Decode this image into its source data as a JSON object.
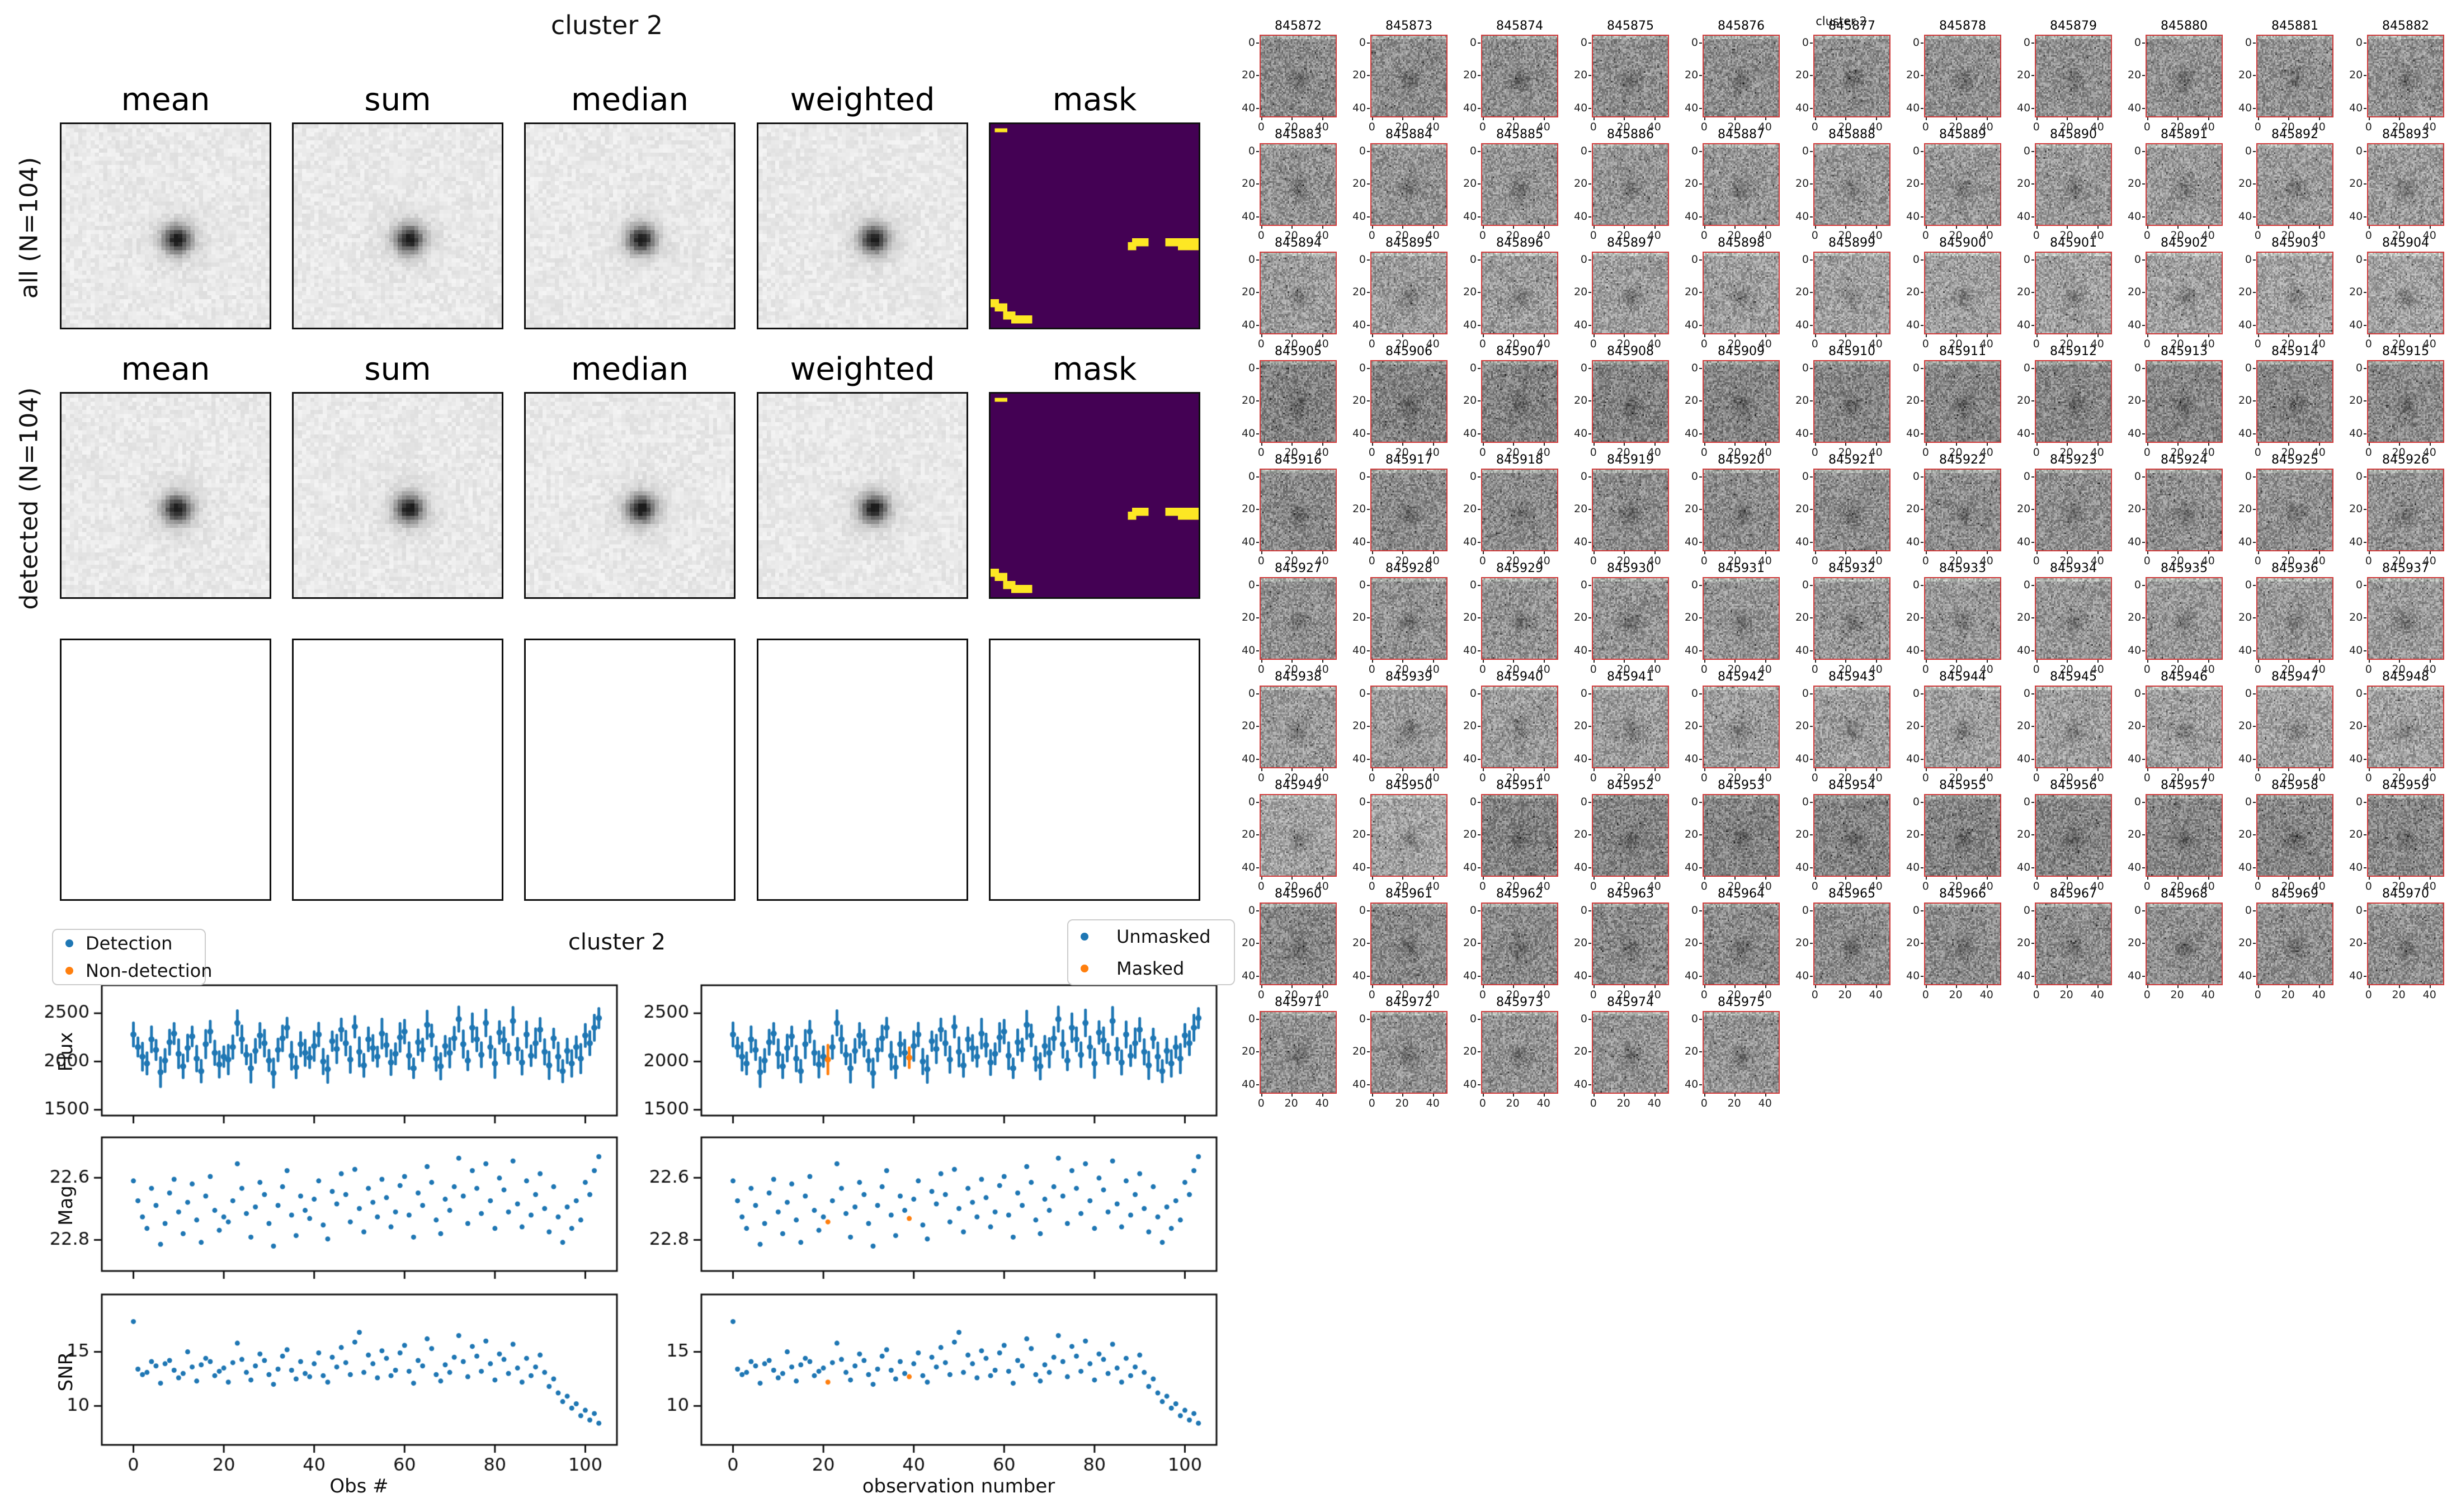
{
  "stack_figure": {
    "title": "cluster 2",
    "column_headers": [
      "mean",
      "sum",
      "median",
      "weighted",
      "mask"
    ],
    "row_labels": [
      "all (N=104)",
      "detected (N=104)"
    ],
    "mask_colors": {
      "background": "#440154",
      "masked": "#fde724"
    },
    "mask_rects_grid50": [
      [
        1,
        1,
        3,
        1
      ],
      [
        34,
        28,
        4,
        2
      ],
      [
        33,
        29,
        2,
        2
      ],
      [
        42,
        28,
        8,
        2
      ],
      [
        45,
        30,
        5,
        1
      ],
      [
        0,
        43,
        2,
        2
      ],
      [
        1,
        44,
        3,
        2
      ],
      [
        3,
        46,
        3,
        2
      ],
      [
        5,
        47,
        5,
        2
      ]
    ]
  },
  "plots_figure": {
    "title": "cluster 2",
    "legend_left": {
      "items": [
        {
          "label": "Detection",
          "color": "#1f77b4"
        },
        {
          "label": "Non-detection",
          "color": "#ff7f0e"
        }
      ]
    },
    "legend_right": {
      "items": [
        {
          "label": "Unmasked",
          "color": "#1f77b4"
        },
        {
          "label": "Masked",
          "color": "#ff7f0e"
        }
      ]
    },
    "ylabels": [
      "Flux",
      "Mag",
      "SNR"
    ],
    "xlabel_left": "Obs #",
    "xlabel_right": "observation number",
    "point_color": "#1f77b4",
    "masked_color": "#ff7f0e"
  },
  "chart_data": {
    "type": "scatter",
    "title": "cluster 2",
    "n_obs": 104,
    "x_is_observation_index_starting_at": 0,
    "xlim": [
      -7,
      107
    ],
    "xticks": [
      0,
      20,
      40,
      60,
      80,
      100
    ],
    "masked_obs": [
      21,
      39
    ],
    "series": [
      {
        "name": "Flux",
        "style": "errorbar",
        "ylim": [
          1440,
          2790
        ],
        "yticks": [
          1500,
          2000,
          2500
        ],
        "values": [
          2280,
          2150,
          2050,
          1980,
          2230,
          2120,
          1890,
          2010,
          2200,
          2290,
          2080,
          1950,
          2140,
          2260,
          2030,
          1900,
          2180,
          2310,
          2090,
          1970,
          2050,
          2020,
          2150,
          2400,
          2230,
          2070,
          1930,
          2110,
          2270,
          2190,
          2010,
          1880,
          2120,
          2240,
          2350,
          2060,
          1940,
          2180,
          2090,
          2040,
          2160,
          2280,
          2000,
          1920,
          2210,
          2130,
          2330,
          2190,
          2020,
          2360,
          2100,
          1960,
          2230,
          2140,
          2050,
          2290,
          2170,
          1990,
          2080,
          2250,
          2310,
          2060,
          1930,
          2200,
          2120,
          2380,
          2270,
          2030,
          1950,
          2160,
          2090,
          2240,
          2440,
          2180,
          2010,
          2350,
          2230,
          2070,
          2400,
          2150,
          1980,
          2300,
          2220,
          2080,
          2420,
          2130,
          1990,
          2280,
          2060,
          2190,
          2330,
          2100,
          1960,
          2240,
          2050,
          1900,
          2110,
          1980,
          2150,
          2030,
          2270,
          2190,
          2350,
          2450
        ],
        "errors": [
          120,
          95,
          140,
          110,
          130,
          100,
          150,
          115,
          125,
          105,
          145,
          118,
          135,
          98,
          128,
          112,
          142,
          108,
          122,
          132,
          102,
          148,
          116,
          126,
          138,
          96,
          144,
          119,
          124,
          134,
          106,
          146,
          113,
          129,
          99,
          141,
          109,
          121,
          131,
          103,
          149,
          117,
          127,
          137,
          97,
          143,
          111,
          123,
          133,
          107,
          147,
          114,
          120,
          130,
          100,
          150,
          115,
          125,
          105,
          145,
          118,
          135,
          98,
          128,
          112,
          142,
          108,
          122,
          132,
          102,
          148,
          116,
          126,
          138,
          96,
          144,
          119,
          124,
          134,
          106,
          146,
          113,
          129,
          99,
          141,
          109,
          121,
          131,
          103,
          149,
          117,
          127,
          137,
          97,
          143,
          111,
          123,
          133,
          107,
          147,
          114,
          120,
          130,
          100
        ]
      },
      {
        "name": "Mag",
        "style": "scatter",
        "inverted": true,
        "ylim": [
          22.47,
          22.9
        ],
        "yticks": [
          22.6,
          22.8
        ],
        "values": [
          22.61,
          22.674,
          22.726,
          22.763,
          22.634,
          22.689,
          22.814,
          22.747,
          22.649,
          22.605,
          22.71,
          22.78,
          22.679,
          22.62,
          22.736,
          22.808,
          22.659,
          22.596,
          22.705,
          22.769,
          22.726,
          22.742,
          22.674,
          22.555,
          22.634,
          22.715,
          22.791,
          22.694,
          22.615,
          22.654,
          22.747,
          22.82,
          22.689,
          22.629,
          22.577,
          22.72,
          22.786,
          22.659,
          22.705,
          22.731,
          22.669,
          22.61,
          22.752,
          22.797,
          22.644,
          22.684,
          22.587,
          22.654,
          22.742,
          22.573,
          22.699,
          22.774,
          22.634,
          22.679,
          22.726,
          22.605,
          22.664,
          22.758,
          22.71,
          22.625,
          22.596,
          22.72,
          22.791,
          22.649,
          22.689,
          22.564,
          22.615,
          22.736,
          22.78,
          22.669,
          22.705,
          22.629,
          22.537,
          22.659,
          22.747,
          22.577,
          22.634,
          22.715,
          22.555,
          22.674,
          22.763,
          22.601,
          22.639,
          22.71,
          22.546,
          22.684,
          22.758,
          22.61,
          22.72,
          22.654,
          22.587,
          22.699,
          22.774,
          22.629,
          22.726,
          22.808,
          22.694,
          22.763,
          22.674,
          22.736,
          22.615,
          22.654,
          22.577,
          22.532
        ]
      },
      {
        "name": "SNR",
        "style": "scatter",
        "ylim": [
          6.4,
          20.3
        ],
        "yticks": [
          10,
          15
        ],
        "values": [
          17.8,
          13.4,
          12.9,
          13.1,
          14.1,
          13.7,
          12.1,
          13.9,
          14.2,
          13.3,
          12.6,
          13.0,
          15.0,
          13.6,
          12.3,
          13.8,
          14.4,
          14.1,
          12.8,
          13.2,
          13.5,
          12.2,
          14.0,
          15.8,
          14.3,
          13.1,
          12.4,
          13.7,
          14.8,
          14.2,
          12.9,
          12.0,
          13.4,
          14.6,
          15.2,
          13.3,
          12.5,
          14.1,
          13.0,
          12.7,
          13.9,
          14.9,
          12.8,
          12.2,
          14.5,
          13.6,
          15.4,
          14.0,
          12.9,
          15.9,
          16.8,
          13.1,
          14.7,
          13.9,
          12.6,
          15.1,
          14.4,
          12.8,
          13.3,
          14.9,
          15.6,
          13.2,
          12.1,
          14.2,
          13.7,
          16.2,
          15.3,
          12.9,
          12.3,
          13.8,
          13.1,
          14.5,
          16.5,
          14.1,
          12.7,
          15.5,
          14.6,
          13.2,
          16.0,
          13.9,
          12.4,
          14.8,
          14.3,
          13.0,
          15.7,
          13.5,
          12.2,
          14.4,
          12.8,
          13.6,
          14.7,
          13.1,
          11.8,
          12.5,
          11.2,
          10.4,
          10.9,
          9.8,
          10.2,
          9.1,
          9.6,
          8.7,
          9.3,
          8.4
        ]
      }
    ]
  },
  "thumbs_figure": {
    "suptitle": "cluster 2",
    "start_id": 845872,
    "count": 104,
    "cols": 11,
    "xticks": [
      0,
      20,
      40
    ],
    "yticks": [
      0,
      20,
      40
    ],
    "border_color": "#d03b3b"
  }
}
